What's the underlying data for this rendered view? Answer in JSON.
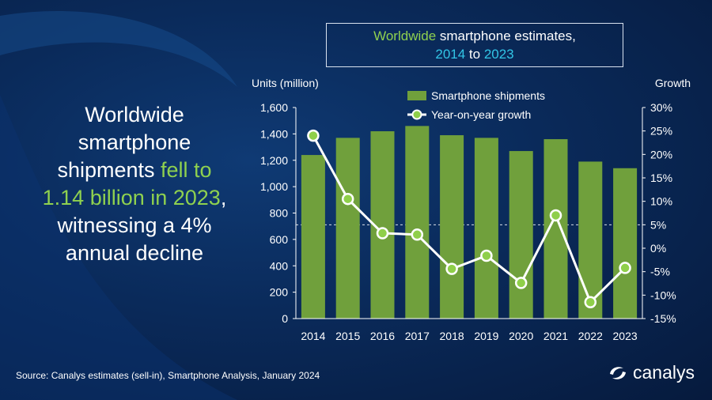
{
  "headline": {
    "line1": "Worldwide",
    "line2": "smartphone",
    "line3_a": "shipments ",
    "line3_b": "fell to",
    "line4_a": "1.14 billion in 2023",
    "line4_b": ",",
    "line5": "witnessing a 4%",
    "line6": "annual decline"
  },
  "title_box": {
    "word1": "Worldwide",
    "rest1": " smartphone estimates,",
    "year_start": "2014",
    "to": " to ",
    "year_end": "2023"
  },
  "source": "Source: Canalys estimates (sell-in), Smartphone Analysis, January 2024",
  "logo": {
    "text": "canalys",
    "icon": "canalys-swirl-icon"
  },
  "colors": {
    "bar": "#70a03c",
    "line": "#ffffff",
    "marker": "#8fcf4a",
    "accent_green": "#8fd14f",
    "accent_cyan": "#32c5e6"
  },
  "chart_data": {
    "type": "bar",
    "categories": [
      "2014",
      "2015",
      "2016",
      "2017",
      "2018",
      "2019",
      "2020",
      "2021",
      "2022",
      "2023"
    ],
    "series": [
      {
        "name": "Smartphone shipments",
        "type": "bar",
        "axis": "left",
        "values": [
          1240,
          1370,
          1420,
          1460,
          1390,
          1370,
          1270,
          1360,
          1190,
          1140
        ]
      },
      {
        "name": "Year-on-year growth",
        "type": "line",
        "axis": "right",
        "values": [
          24,
          10.5,
          3.2,
          2.9,
          -4.4,
          -1.6,
          -7.4,
          7.0,
          -11.5,
          -4.2
        ]
      }
    ],
    "ylabel": "Units (million)",
    "y2label": "Growth",
    "ylim": [
      0,
      1600
    ],
    "y2lim": [
      -15,
      30
    ],
    "yticks": [
      "0",
      "200",
      "400",
      "600",
      "800",
      "1,000",
      "1,200",
      "1,400",
      "1,600"
    ],
    "y2ticks": [
      "-15%",
      "-10%",
      "-5%",
      "0%",
      "5%",
      "10%",
      "15%",
      "20%",
      "25%",
      "30%"
    ],
    "reference_line": {
      "axis": "right",
      "value": 5,
      "style": "dashed"
    },
    "legend": "top",
    "grid": false
  }
}
